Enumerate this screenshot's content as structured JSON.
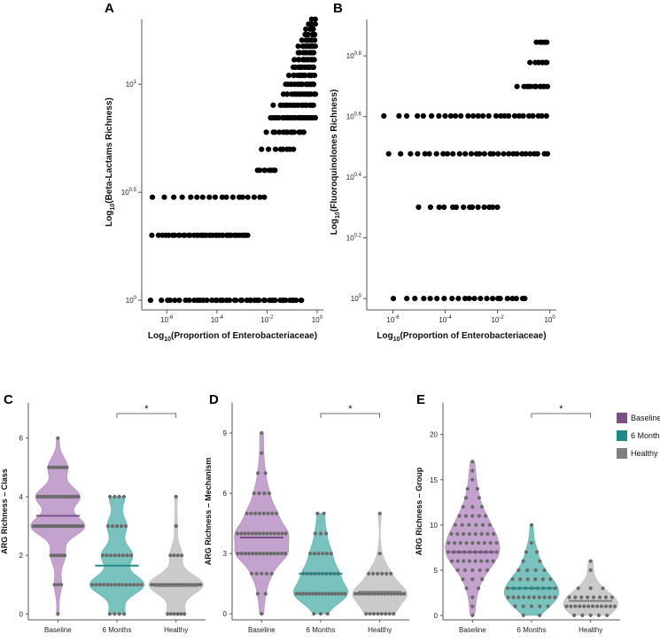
{
  "colors": {
    "baseline": "#7b4f8a",
    "baseline_fill": "#b892c4",
    "six_months": "#1f8a8a",
    "six_months_fill": "#63b7b3",
    "healthy": "#7f7f7f",
    "healthy_fill": "#c2c2c2",
    "dot": "#000000",
    "strip": "#6b6b6b"
  },
  "legend": {
    "items": [
      {
        "label": "Baseline",
        "color": "#7b4f8a"
      },
      {
        "label": "6 Months",
        "color": "#1f8a8a"
      },
      {
        "label": "Healthy",
        "color": "#7f7f7f"
      }
    ]
  },
  "chart_data": [
    {
      "panel": "A",
      "type": "scatter",
      "xlabel_main": "Log",
      "xlabel_sub": "10",
      "xlabel_rest": "(Proportion of Enterobacteriaceae)",
      "ylabel_main": "Log",
      "ylabel_sub": "10",
      "ylabel_rest": "(Beta-Lactams Richness)",
      "x_log_range": [
        -7,
        0.25
      ],
      "y_log_range": [
        -0.02,
        1.3
      ],
      "x_ticks": [
        {
          "base": "10",
          "exp": "-6",
          "value": -6
        },
        {
          "base": "10",
          "exp": "-4",
          "value": -4
        },
        {
          "base": "10",
          "exp": "-2",
          "value": -2
        },
        {
          "base": "10",
          "exp": "0",
          "value": 0
        }
      ],
      "y_ticks": [
        {
          "base": "10",
          "exp": "0",
          "value": 0
        },
        {
          "base": "10",
          "exp": "0.5",
          "value": 0.5
        },
        {
          "base": "10",
          "exp": "1",
          "value": 1
        }
      ],
      "richness_levels": [
        1,
        2,
        3,
        4,
        5,
        6,
        7,
        8,
        9,
        10,
        11,
        12,
        13,
        14,
        15,
        16,
        17,
        18,
        19,
        20
      ],
      "level_ranges": [
        {
          "richness": 1,
          "x_min": -6.6,
          "x_max": -0.6,
          "n": 46
        },
        {
          "richness": 2,
          "x_min": -6.6,
          "x_max": -2.8,
          "n": 40
        },
        {
          "richness": 3,
          "x_min": -6.6,
          "x_max": -2.1,
          "n": 18
        },
        {
          "richness": 4,
          "x_min": -2.4,
          "x_max": -1.7,
          "n": 8
        },
        {
          "richness": 5,
          "x_min": -2.2,
          "x_max": -0.9,
          "n": 8
        },
        {
          "richness": 6,
          "x_min": -2.0,
          "x_max": -0.5,
          "n": 14
        },
        {
          "richness": 7,
          "x_min": -1.9,
          "x_max": -0.1,
          "n": 24
        },
        {
          "richness": 8,
          "x_min": -1.7,
          "x_max": -0.1,
          "n": 18
        },
        {
          "richness": 9,
          "x_min": -1.4,
          "x_max": -0.1,
          "n": 18
        },
        {
          "richness": 10,
          "x_min": -1.3,
          "x_max": -0.1,
          "n": 18
        },
        {
          "richness": 11,
          "x_min": -1.1,
          "x_max": -0.1,
          "n": 15
        },
        {
          "richness": 12,
          "x_min": -1.0,
          "x_max": -0.1,
          "n": 14
        },
        {
          "richness": 13,
          "x_min": -0.9,
          "x_max": -0.1,
          "n": 12
        },
        {
          "richness": 14,
          "x_min": -0.8,
          "x_max": -0.1,
          "n": 10
        },
        {
          "richness": 15,
          "x_min": -0.7,
          "x_max": -0.1,
          "n": 10
        },
        {
          "richness": 16,
          "x_min": -0.6,
          "x_max": -0.1,
          "n": 8
        },
        {
          "richness": 17,
          "x_min": -0.5,
          "x_max": -0.1,
          "n": 6
        },
        {
          "richness": 18,
          "x_min": -0.4,
          "x_max": -0.1,
          "n": 4
        },
        {
          "richness": 19,
          "x_min": -0.3,
          "x_max": -0.1,
          "n": 3
        },
        {
          "richness": 20,
          "x_min": -0.25,
          "x_max": -0.1,
          "n": 2
        }
      ]
    },
    {
      "panel": "B",
      "type": "scatter",
      "xlabel_main": "Log",
      "xlabel_sub": "10",
      "xlabel_rest": "(Proportion of Enterobacteriaceae)",
      "ylabel_main": "Log",
      "ylabel_sub": "10",
      "ylabel_rest": "(Fluoroquinolones Richness)",
      "x_log_range": [
        -7,
        0.25
      ],
      "y_log_range": [
        -0.02,
        0.92
      ],
      "x_ticks": [
        {
          "base": "10",
          "exp": "-6",
          "value": -6
        },
        {
          "base": "10",
          "exp": "-4",
          "value": -4
        },
        {
          "base": "10",
          "exp": "-2",
          "value": -2
        },
        {
          "base": "10",
          "exp": "0",
          "value": 0
        }
      ],
      "y_ticks": [
        {
          "base": "10",
          "exp": "0",
          "value": 0
        },
        {
          "base": "10",
          "exp": "0.2",
          "value": 0.2
        },
        {
          "base": "10",
          "exp": "0.4",
          "value": 0.4
        },
        {
          "base": "10",
          "exp": "0.6",
          "value": 0.6
        },
        {
          "base": "10",
          "exp": "0.8",
          "value": 0.8
        }
      ],
      "level_ranges": [
        {
          "richness": 1,
          "x_min": -6.0,
          "x_max": -0.9,
          "n": 22
        },
        {
          "richness": 2,
          "x_min": -5.0,
          "x_max": -2.0,
          "n": 14
        },
        {
          "richness": 3,
          "x_min": -6.2,
          "x_max": -0.1,
          "n": 30
        },
        {
          "richness": 4,
          "x_min": -6.3,
          "x_max": -0.1,
          "n": 28
        },
        {
          "richness": 5,
          "x_min": -1.2,
          "x_max": -0.1,
          "n": 12
        },
        {
          "richness": 6,
          "x_min": -0.7,
          "x_max": -0.1,
          "n": 8
        },
        {
          "richness": 7,
          "x_min": -0.5,
          "x_max": -0.1,
          "n": 5
        }
      ]
    },
    {
      "panel": "C",
      "type": "violin",
      "ylabel": "ARG Richness – Class",
      "ylim": [
        -0.2,
        7.2
      ],
      "y_ticks": [
        "0",
        "2",
        "4",
        "6"
      ],
      "y_tick_values": [
        0,
        2,
        4,
        6
      ],
      "categories": [
        "Baseline",
        "6 Months",
        "Healthy"
      ],
      "medians": [
        3.35,
        1.65,
        0.95
      ],
      "distributions": [
        {
          "name": "Baseline",
          "levels": [
            [
              0,
              1
            ],
            [
              1,
              3
            ],
            [
              2,
              6
            ],
            [
              3,
              22
            ],
            [
              4,
              18
            ],
            [
              5,
              8
            ],
            [
              6,
              1
            ]
          ]
        },
        {
          "name": "6 Months",
          "levels": [
            [
              0,
              4
            ],
            [
              1,
              14
            ],
            [
              2,
              8
            ],
            [
              3,
              5
            ],
            [
              4,
              4
            ]
          ]
        },
        {
          "name": "Healthy",
          "levels": [
            [
              0,
              6
            ],
            [
              1,
              18
            ],
            [
              2,
              4
            ],
            [
              3,
              1
            ],
            [
              4,
              1
            ]
          ]
        }
      ],
      "significance": {
        "from": 1,
        "to": 2,
        "label": "*"
      }
    },
    {
      "panel": "D",
      "type": "violin",
      "ylabel": "ARG Richness – Mechanism",
      "ylim": [
        -0.3,
        10.5
      ],
      "y_ticks": [
        "0",
        "3",
        "6",
        "9"
      ],
      "y_tick_values": [
        0,
        3,
        6,
        9
      ],
      "categories": [
        "Baseline",
        "6 Months",
        "Healthy"
      ],
      "medians": [
        3.8,
        2.0,
        1.1
      ],
      "distributions": [
        {
          "name": "Baseline",
          "levels": [
            [
              0,
              1
            ],
            [
              1,
              2
            ],
            [
              2,
              5
            ],
            [
              3,
              14
            ],
            [
              4,
              14
            ],
            [
              5,
              8
            ],
            [
              6,
              4
            ],
            [
              7,
              2
            ],
            [
              8,
              1
            ],
            [
              9,
              1
            ]
          ]
        },
        {
          "name": "6 Months",
          "levels": [
            [
              0,
              3
            ],
            [
              1,
              16
            ],
            [
              2,
              10
            ],
            [
              3,
              6
            ],
            [
              4,
              3
            ],
            [
              5,
              2
            ]
          ]
        },
        {
          "name": "Healthy",
          "levels": [
            [
              0,
              8
            ],
            [
              1,
              16
            ],
            [
              2,
              6
            ],
            [
              3,
              1
            ],
            [
              5,
              1
            ]
          ]
        }
      ],
      "significance": {
        "from": 1,
        "to": 2,
        "label": "*"
      }
    },
    {
      "panel": "E",
      "type": "violin",
      "ylabel": "ARG Richness – Group",
      "ylim": [
        -0.5,
        23.5
      ],
      "y_ticks": [
        "0",
        "5",
        "10",
        "15",
        "20"
      ],
      "y_tick_values": [
        0,
        5,
        10,
        15,
        20
      ],
      "categories": [
        "Baseline",
        "6 Months",
        "Healthy"
      ],
      "medians": [
        7.0,
        3.0,
        1.6
      ],
      "distributions": [
        {
          "name": "Baseline",
          "levels": [
            [
              0,
              1
            ],
            [
              1,
              1
            ],
            [
              2,
              1
            ],
            [
              3,
              2
            ],
            [
              4,
              3
            ],
            [
              5,
              5
            ],
            [
              6,
              8
            ],
            [
              7,
              10
            ],
            [
              8,
              9
            ],
            [
              9,
              8
            ],
            [
              10,
              6
            ],
            [
              11,
              5
            ],
            [
              12,
              3
            ],
            [
              13,
              2
            ],
            [
              14,
              2
            ],
            [
              15,
              1
            ],
            [
              16,
              1
            ],
            [
              17,
              1
            ]
          ]
        },
        {
          "name": "6 Months",
          "levels": [
            [
              0,
              2
            ],
            [
              1,
              5
            ],
            [
              2,
              10
            ],
            [
              3,
              9
            ],
            [
              4,
              6
            ],
            [
              5,
              4
            ],
            [
              6,
              2
            ],
            [
              7,
              2
            ],
            [
              8,
              1
            ],
            [
              10,
              1
            ]
          ]
        },
        {
          "name": "Healthy",
          "levels": [
            [
              0,
              5
            ],
            [
              1,
              12
            ],
            [
              2,
              8
            ],
            [
              3,
              3
            ],
            [
              5,
              1
            ],
            [
              6,
              1
            ]
          ]
        }
      ],
      "significance": {
        "from": 1,
        "to": 2,
        "label": "*"
      }
    }
  ]
}
